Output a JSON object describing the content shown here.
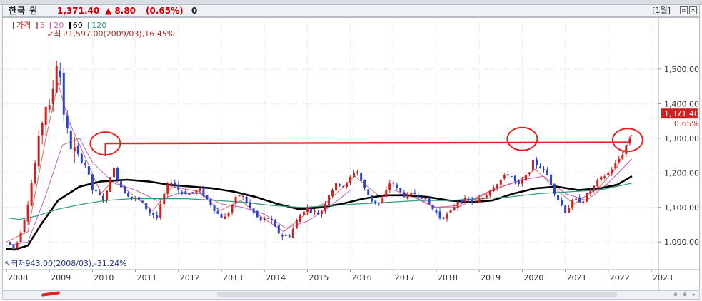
{
  "header": {
    "name": "한국 원",
    "price": "1,371.40",
    "change": "▲ 8.80",
    "change_pct": "(0.65%)",
    "volume": "0",
    "period": "[1월]"
  },
  "legend": [
    {
      "label": "가격",
      "color": "#cc2222"
    },
    {
      "label": "5",
      "color": "#e06666"
    },
    {
      "label": "20",
      "color": "#c060c0"
    },
    {
      "label": "60",
      "color": "#000000"
    },
    {
      "label": "120",
      "color": "#2e9a82"
    }
  ],
  "annotations": {
    "high": "최고1,597.00(2009/03),16.45%",
    "low": "최저943.00(2008/03),-31.24%"
  },
  "price_box": {
    "value": "1,371.40",
    "pct": "0.65%"
  },
  "colors": {
    "up": "#cc2222",
    "down": "#2b45c8",
    "ma5": "#e06666",
    "ma20": "#c060c0",
    "ma60": "#000000",
    "ma120": "#2e9a82",
    "drawing": "#e52222"
  },
  "chart_data": {
    "type": "candlestick",
    "title": "한국 원",
    "x_labels": [
      "2008",
      "2009",
      "2010",
      "2011",
      "2012",
      "2013",
      "2014",
      "2015",
      "2016",
      "2017",
      "2018",
      "2019",
      "2020",
      "2021",
      "2022",
      "2023"
    ],
    "y_ticks": [
      "1,000.00",
      "1,100.00",
      "1,200.00",
      "1,300.00",
      "1,400.00",
      "1,500.00"
    ],
    "ylim": [
      920,
      1640
    ],
    "grid": true,
    "close_path": [
      [
        2008.0,
        1000
      ],
      [
        2008.2,
        980
      ],
      [
        2008.45,
        1080
      ],
      [
        2008.7,
        1250
      ],
      [
        2008.9,
        1400
      ],
      [
        2009.0,
        1380
      ],
      [
        2009.15,
        1500
      ],
      [
        2009.2,
        1560
      ],
      [
        2009.3,
        1400
      ],
      [
        2009.45,
        1290
      ],
      [
        2009.6,
        1260
      ],
      [
        2009.85,
        1220
      ],
      [
        2010.0,
        1150
      ],
      [
        2010.3,
        1120
      ],
      [
        2010.4,
        1190
      ],
      [
        2010.5,
        1210
      ],
      [
        2010.7,
        1150
      ],
      [
        2010.9,
        1130
      ],
      [
        2011.1,
        1120
      ],
      [
        2011.3,
        1090
      ],
      [
        2011.5,
        1070
      ],
      [
        2011.7,
        1150
      ],
      [
        2011.85,
        1180
      ],
      [
        2012.0,
        1150
      ],
      [
        2012.25,
        1140
      ],
      [
        2012.5,
        1150
      ],
      [
        2012.75,
        1110
      ],
      [
        2012.95,
        1075
      ],
      [
        2013.1,
        1070
      ],
      [
        2013.3,
        1120
      ],
      [
        2013.45,
        1140
      ],
      [
        2013.65,
        1100
      ],
      [
        2013.9,
        1060
      ],
      [
        2014.1,
        1070
      ],
      [
        2014.3,
        1030
      ],
      [
        2014.45,
        1015
      ],
      [
        2014.6,
        1020
      ],
      [
        2014.75,
        1060
      ],
      [
        2014.95,
        1100
      ],
      [
        2015.1,
        1090
      ],
      [
        2015.3,
        1080
      ],
      [
        2015.5,
        1140
      ],
      [
        2015.7,
        1170
      ],
      [
        2015.9,
        1160
      ],
      [
        2016.05,
        1200
      ],
      [
        2016.15,
        1210
      ],
      [
        2016.3,
        1160
      ],
      [
        2016.5,
        1120
      ],
      [
        2016.7,
        1110
      ],
      [
        2016.95,
        1180
      ],
      [
        2017.1,
        1150
      ],
      [
        2017.3,
        1130
      ],
      [
        2017.5,
        1140
      ],
      [
        2017.7,
        1130
      ],
      [
        2017.95,
        1090
      ],
      [
        2018.1,
        1070
      ],
      [
        2018.3,
        1080
      ],
      [
        2018.5,
        1120
      ],
      [
        2018.7,
        1120
      ],
      [
        2018.95,
        1115
      ],
      [
        2019.1,
        1130
      ],
      [
        2019.3,
        1160
      ],
      [
        2019.5,
        1180
      ],
      [
        2019.7,
        1200
      ],
      [
        2019.9,
        1160
      ],
      [
        2020.1,
        1190
      ],
      [
        2020.25,
        1230
      ],
      [
        2020.4,
        1220
      ],
      [
        2020.6,
        1190
      ],
      [
        2020.8,
        1130
      ],
      [
        2021.0,
        1090
      ],
      [
        2021.2,
        1120
      ],
      [
        2021.4,
        1120
      ],
      [
        2021.6,
        1150
      ],
      [
        2021.8,
        1180
      ],
      [
        2022.0,
        1200
      ],
      [
        2022.2,
        1230
      ],
      [
        2022.35,
        1260
      ],
      [
        2022.45,
        1290
      ],
      [
        2022.5,
        1300
      ],
      [
        2022.55,
        1371.4
      ]
    ],
    "ma_series": [
      {
        "name": "5",
        "values": [
          [
            2008.0,
            1000
          ],
          [
            2008.5,
            1030
          ],
          [
            2008.9,
            1290
          ],
          [
            2009.2,
            1460
          ],
          [
            2009.45,
            1350
          ],
          [
            2009.85,
            1240
          ],
          [
            2010.2,
            1140
          ],
          [
            2010.5,
            1180
          ],
          [
            2010.9,
            1140
          ],
          [
            2011.4,
            1090
          ],
          [
            2011.85,
            1160
          ],
          [
            2012.5,
            1145
          ],
          [
            2012.95,
            1090
          ],
          [
            2013.45,
            1120
          ],
          [
            2013.9,
            1075
          ],
          [
            2014.45,
            1030
          ],
          [
            2014.95,
            1080
          ],
          [
            2015.5,
            1120
          ],
          [
            2016.1,
            1190
          ],
          [
            2016.7,
            1130
          ],
          [
            2017.3,
            1140
          ],
          [
            2017.95,
            1100
          ],
          [
            2018.5,
            1105
          ],
          [
            2019.3,
            1150
          ],
          [
            2019.9,
            1175
          ],
          [
            2020.3,
            1210
          ],
          [
            2020.8,
            1150
          ],
          [
            2021.2,
            1110
          ],
          [
            2021.8,
            1160
          ],
          [
            2022.2,
            1215
          ],
          [
            2022.55,
            1310
          ]
        ]
      },
      {
        "name": "20",
        "values": [
          [
            2008.0,
            990
          ],
          [
            2008.5,
            1000
          ],
          [
            2008.9,
            1130
          ],
          [
            2009.3,
            1280
          ],
          [
            2009.7,
            1300
          ],
          [
            2010.0,
            1230
          ],
          [
            2010.5,
            1170
          ],
          [
            2011.0,
            1150
          ],
          [
            2011.5,
            1120
          ],
          [
            2012.0,
            1140
          ],
          [
            2012.5,
            1140
          ],
          [
            2013.0,
            1110
          ],
          [
            2013.5,
            1100
          ],
          [
            2014.0,
            1080
          ],
          [
            2014.5,
            1040
          ],
          [
            2015.0,
            1060
          ],
          [
            2015.5,
            1100
          ],
          [
            2016.0,
            1150
          ],
          [
            2016.5,
            1150
          ],
          [
            2017.0,
            1150
          ],
          [
            2017.5,
            1130
          ],
          [
            2018.0,
            1100
          ],
          [
            2018.5,
            1100
          ],
          [
            2019.0,
            1130
          ],
          [
            2019.5,
            1160
          ],
          [
            2020.0,
            1180
          ],
          [
            2020.5,
            1190
          ],
          [
            2021.0,
            1140
          ],
          [
            2021.5,
            1120
          ],
          [
            2022.0,
            1170
          ],
          [
            2022.55,
            1240
          ]
        ]
      },
      {
        "name": "60",
        "values": [
          [
            2008.0,
            980
          ],
          [
            2008.2,
            978
          ],
          [
            2008.5,
            990
          ],
          [
            2008.8,
            1050
          ],
          [
            2009.2,
            1120
          ],
          [
            2009.7,
            1160
          ],
          [
            2010.2,
            1175
          ],
          [
            2010.8,
            1180
          ],
          [
            2011.3,
            1175
          ],
          [
            2011.8,
            1165
          ],
          [
            2012.3,
            1160
          ],
          [
            2012.8,
            1155
          ],
          [
            2013.3,
            1145
          ],
          [
            2013.8,
            1130
          ],
          [
            2014.3,
            1110
          ],
          [
            2014.8,
            1095
          ],
          [
            2015.3,
            1100
          ],
          [
            2015.8,
            1110
          ],
          [
            2016.3,
            1125
          ],
          [
            2016.8,
            1135
          ],
          [
            2017.3,
            1135
          ],
          [
            2017.8,
            1130
          ],
          [
            2018.3,
            1120
          ],
          [
            2018.8,
            1115
          ],
          [
            2019.3,
            1120
          ],
          [
            2019.8,
            1140
          ],
          [
            2020.3,
            1155
          ],
          [
            2020.8,
            1160
          ],
          [
            2021.3,
            1150
          ],
          [
            2021.8,
            1155
          ],
          [
            2022.2,
            1165
          ],
          [
            2022.55,
            1190
          ]
        ]
      },
      {
        "name": "120",
        "values": [
          [
            2008.0,
            1070
          ],
          [
            2008.3,
            1065
          ],
          [
            2008.7,
            1075
          ],
          [
            2009.2,
            1095
          ],
          [
            2009.8,
            1110
          ],
          [
            2010.3,
            1120
          ],
          [
            2010.9,
            1125
          ],
          [
            2011.5,
            1125
          ],
          [
            2012.2,
            1125
          ],
          [
            2012.9,
            1120
          ],
          [
            2013.5,
            1115
          ],
          [
            2014.2,
            1105
          ],
          [
            2014.9,
            1100
          ],
          [
            2015.5,
            1105
          ],
          [
            2016.2,
            1110
          ],
          [
            2016.9,
            1115
          ],
          [
            2017.6,
            1120
          ],
          [
            2018.3,
            1120
          ],
          [
            2019.0,
            1125
          ],
          [
            2019.7,
            1130
          ],
          [
            2020.4,
            1140
          ],
          [
            2021.1,
            1145
          ],
          [
            2021.8,
            1150
          ],
          [
            2022.55,
            1170
          ]
        ]
      }
    ],
    "drawing_line": [
      [
        2010.3,
        1285
      ],
      [
        2022.45,
        1288
      ]
    ],
    "drawing_circles": [
      [
        2010.3,
        1285
      ],
      [
        2020.0,
        1298
      ],
      [
        2022.45,
        1295
      ]
    ]
  }
}
